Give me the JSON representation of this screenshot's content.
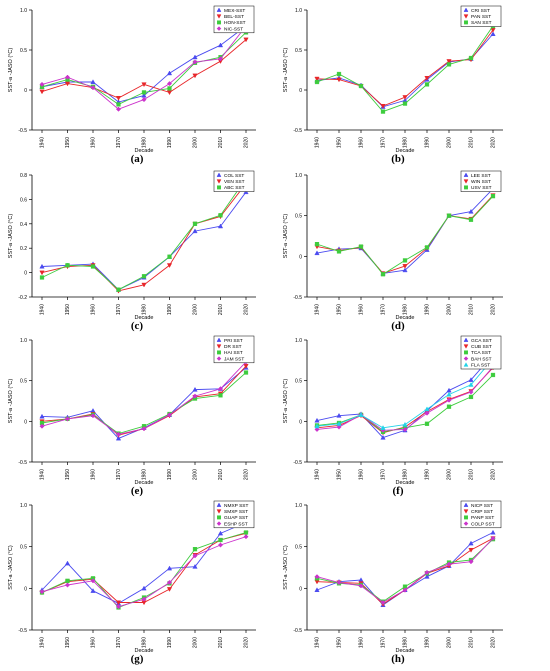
{
  "chart_data": [
    {
      "type": "line",
      "panel": "(a)",
      "xlabel": "Decade",
      "ylabel": "SST-a -JASO (°C)",
      "ylim": [
        -0.5,
        1.0
      ],
      "yticks": [
        "-0.5",
        "0",
        "0.5",
        "1.0"
      ],
      "categories": [
        "1940",
        "1950",
        "1960",
        "1970",
        "1980",
        "1990",
        "2000",
        "2010",
        "2020"
      ],
      "grid": false,
      "legend": "top-right",
      "series": [
        {
          "name": "MEX-SST",
          "color": "#4b4bf0",
          "marker": "triangle",
          "values": [
            0.04,
            0.1,
            0.1,
            -0.15,
            -0.07,
            0.21,
            0.41,
            0.56,
            0.8
          ]
        },
        {
          "name": "BEL-SST",
          "color": "#e8262a",
          "marker": "tri-down",
          "values": [
            -0.02,
            0.08,
            0.03,
            -0.1,
            0.07,
            -0.03,
            0.18,
            0.36,
            0.63
          ]
        },
        {
          "name": "HON-SST",
          "color": "#3dcc3d",
          "marker": "square",
          "values": [
            0.04,
            0.13,
            0.04,
            -0.18,
            -0.03,
            0.02,
            0.34,
            0.41,
            0.72
          ]
        },
        {
          "name": "NIC-SST",
          "color": "#cc33cc",
          "marker": "diamond",
          "values": [
            0.07,
            0.16,
            0.03,
            -0.24,
            -0.12,
            0.08,
            0.35,
            0.39,
            0.8
          ]
        }
      ]
    },
    {
      "type": "line",
      "panel": "(b)",
      "xlabel": "Decade",
      "ylabel": "SST-a -JASO (°C)",
      "ylim": [
        -0.5,
        1.0
      ],
      "yticks": [
        "-0.5",
        "0",
        "0.5",
        "1.0"
      ],
      "categories": [
        "1940",
        "1950",
        "1960",
        "1970",
        "1980",
        "1990",
        "2000",
        "2010",
        "2020"
      ],
      "grid": false,
      "legend": "top-right",
      "series": [
        {
          "name": "CRI SST",
          "color": "#4b4bf0",
          "marker": "triangle",
          "values": [
            0.12,
            0.15,
            0.06,
            -0.21,
            -0.13,
            0.13,
            0.35,
            0.39,
            0.7
          ]
        },
        {
          "name": "PAN SST",
          "color": "#e8262a",
          "marker": "tri-down",
          "values": [
            0.14,
            0.13,
            0.05,
            -0.2,
            -0.09,
            0.15,
            0.36,
            0.38,
            0.75
          ]
        },
        {
          "name": "SAN SST",
          "color": "#3dcc3d",
          "marker": "square",
          "values": [
            0.1,
            0.2,
            0.05,
            -0.27,
            -0.17,
            0.07,
            0.32,
            0.4,
            0.8
          ]
        }
      ]
    },
    {
      "type": "line",
      "panel": "(c)",
      "xlabel": "Decade",
      "ylabel": "SST-a -JASO (°C)",
      "ylim": [
        -0.2,
        0.8
      ],
      "yticks": [
        "-0.2",
        "0",
        "0.2",
        "0.4",
        "0.6",
        "0.8"
      ],
      "categories": [
        "1940",
        "1950",
        "1960",
        "1970",
        "1980",
        "1990",
        "2000",
        "2010",
        "2020"
      ],
      "grid": false,
      "legend": "top-right",
      "series": [
        {
          "name": "COL SST",
          "color": "#4b4bf0",
          "marker": "triangle",
          "values": [
            0.05,
            0.06,
            0.07,
            -0.14,
            -0.04,
            0.13,
            0.34,
            0.38,
            0.66
          ]
        },
        {
          "name": "VEN SST",
          "color": "#e8262a",
          "marker": "tri-down",
          "values": [
            0.0,
            0.05,
            0.06,
            -0.15,
            -0.1,
            0.06,
            0.4,
            0.46,
            0.73
          ]
        },
        {
          "name": "ABC SST",
          "color": "#3dcc3d",
          "marker": "square",
          "values": [
            -0.04,
            0.06,
            0.05,
            -0.14,
            -0.03,
            0.13,
            0.4,
            0.47,
            0.77
          ]
        }
      ]
    },
    {
      "type": "line",
      "panel": "(d)",
      "xlabel": "Decade",
      "ylabel": "SST-a -JASO (°C)",
      "ylim": [
        -0.5,
        1.0
      ],
      "yticks": [
        "-0.5",
        "0",
        "0.5",
        "1.0"
      ],
      "categories": [
        "1940",
        "1950",
        "1960",
        "1970",
        "1980",
        "1990",
        "2000",
        "2010",
        "2020"
      ],
      "grid": false,
      "legend": "top-right",
      "series": [
        {
          "name": "LEE SST",
          "color": "#4b4bf0",
          "marker": "triangle",
          "values": [
            0.04,
            0.09,
            0.1,
            -0.21,
            -0.17,
            0.08,
            0.5,
            0.55,
            0.83
          ]
        },
        {
          "name": "WIN SST",
          "color": "#e8262a",
          "marker": "tri-down",
          "values": [
            0.12,
            0.07,
            0.11,
            -0.21,
            -0.12,
            0.1,
            0.5,
            0.46,
            0.75
          ]
        },
        {
          "name": "USV SST",
          "color": "#3dcc3d",
          "marker": "square",
          "values": [
            0.15,
            0.06,
            0.12,
            -0.22,
            -0.05,
            0.11,
            0.5,
            0.45,
            0.74
          ]
        }
      ]
    },
    {
      "type": "line",
      "panel": "(e)",
      "xlabel": "Decade",
      "ylabel": "SST-a -JASO (°C)",
      "ylim": [
        -0.5,
        1.0
      ],
      "yticks": [
        "-0.5",
        "0",
        "0.5",
        "1.0"
      ],
      "categories": [
        "1940",
        "1950",
        "1960",
        "1970",
        "1980",
        "1990",
        "2000",
        "2010",
        "2020"
      ],
      "grid": false,
      "legend": "top-right",
      "series": [
        {
          "name": "PRI SST",
          "color": "#4b4bf0",
          "marker": "triangle",
          "values": [
            0.06,
            0.05,
            0.13,
            -0.21,
            -0.08,
            0.08,
            0.39,
            0.4,
            0.66
          ]
        },
        {
          "name": "DR SST",
          "color": "#e8262a",
          "marker": "tri-down",
          "values": [
            0.0,
            0.03,
            0.09,
            -0.17,
            -0.09,
            0.07,
            0.3,
            0.34,
            0.68
          ]
        },
        {
          "name": "HAI SST",
          "color": "#3dcc3d",
          "marker": "square",
          "values": [
            -0.02,
            0.03,
            0.08,
            -0.15,
            -0.06,
            0.09,
            0.28,
            0.32,
            0.6
          ]
        },
        {
          "name": "JAM SST",
          "color": "#cc33cc",
          "marker": "diamond",
          "values": [
            -0.06,
            0.03,
            0.07,
            -0.16,
            -0.09,
            0.08,
            0.31,
            0.4,
            0.73
          ]
        }
      ]
    },
    {
      "type": "line",
      "panel": "(f)",
      "xlabel": "Decade",
      "ylabel": "SST-a -JASO (°C)",
      "ylim": [
        -0.5,
        1.0
      ],
      "yticks": [
        "-0.5",
        "0",
        "0.5",
        "1.0"
      ],
      "categories": [
        "1940",
        "1950",
        "1960",
        "1970",
        "1980",
        "1990",
        "2000",
        "2010",
        "2020"
      ],
      "grid": false,
      "legend": "top-right",
      "series": [
        {
          "name": "GCA SST",
          "color": "#4b4bf0",
          "marker": "triangle",
          "values": [
            0.01,
            0.07,
            0.09,
            -0.2,
            -0.11,
            0.13,
            0.38,
            0.51,
            0.82
          ]
        },
        {
          "name": "CUB SST",
          "color": "#e8262a",
          "marker": "tri-down",
          "values": [
            -0.08,
            -0.05,
            0.07,
            -0.14,
            -0.07,
            0.12,
            0.27,
            0.37,
            0.66
          ]
        },
        {
          "name": "TCA SST",
          "color": "#3dcc3d",
          "marker": "square",
          "values": [
            -0.05,
            -0.02,
            0.08,
            -0.13,
            -0.08,
            -0.03,
            0.18,
            0.3,
            0.57
          ]
        },
        {
          "name": "BAH SST",
          "color": "#cc33cc",
          "marker": "diamond",
          "values": [
            -0.1,
            -0.07,
            0.08,
            -0.11,
            -0.1,
            0.1,
            0.26,
            0.36,
            0.67
          ]
        },
        {
          "name": "FLA SST",
          "color": "#22d3e8",
          "marker": "triangle",
          "values": [
            -0.06,
            -0.03,
            0.08,
            -0.08,
            -0.04,
            0.15,
            0.33,
            0.45,
            0.77
          ]
        }
      ]
    },
    {
      "type": "line",
      "panel": "(g)",
      "xlabel": "Decade",
      "ylabel": "SST-a -JASO (°C)",
      "ylim": [
        -0.5,
        1.0
      ],
      "yticks": [
        "-0.5",
        "0",
        "0.5",
        "1.0"
      ],
      "categories": [
        "1940",
        "1950",
        "1960",
        "1970",
        "1980",
        "1990",
        "2000",
        "2010",
        "2020"
      ],
      "grid": false,
      "legend": "top-right",
      "series": [
        {
          "name": "NMXP SST",
          "color": "#4b4bf0",
          "marker": "triangle",
          "values": [
            -0.02,
            0.3,
            -0.03,
            -0.18,
            0.0,
            0.24,
            0.26,
            0.66,
            0.79
          ]
        },
        {
          "name": "SMXP SST",
          "color": "#e8262a",
          "marker": "tri-down",
          "values": [
            -0.05,
            0.08,
            0.11,
            -0.17,
            -0.17,
            -0.01,
            0.4,
            0.58,
            0.66
          ]
        },
        {
          "name": "GUAP SST",
          "color": "#3dcc3d",
          "marker": "square",
          "values": [
            -0.05,
            0.09,
            0.12,
            -0.23,
            -0.11,
            0.06,
            0.47,
            0.58,
            0.67
          ]
        },
        {
          "name": "ESHP SST",
          "color": "#cc33cc",
          "marker": "diamond",
          "values": [
            -0.04,
            0.04,
            0.09,
            -0.22,
            -0.13,
            0.07,
            0.39,
            0.52,
            0.62
          ]
        }
      ]
    },
    {
      "type": "line",
      "panel": "(h)",
      "xlabel": "Decade",
      "ylabel": "SST-a -JASO (°C)",
      "ylim": [
        -0.5,
        1.0
      ],
      "yticks": [
        "-0.5",
        "0",
        "0.5",
        "1.0"
      ],
      "categories": [
        "1940",
        "1950",
        "1960",
        "1970",
        "1980",
        "1990",
        "2000",
        "2010",
        "2020"
      ],
      "grid": false,
      "legend": "top-right",
      "series": [
        {
          "name": "NICP SST",
          "color": "#4b4bf0",
          "marker": "triangle",
          "values": [
            -0.02,
            0.08,
            0.1,
            -0.2,
            -0.02,
            0.14,
            0.27,
            0.54,
            0.67
          ]
        },
        {
          "name": "CRIP SST",
          "color": "#e8262a",
          "marker": "tri-down",
          "values": [
            0.08,
            0.07,
            0.06,
            -0.19,
            -0.02,
            0.18,
            0.27,
            0.46,
            0.6
          ]
        },
        {
          "name": "PANP SST",
          "color": "#3dcc3d",
          "marker": "square",
          "values": [
            0.12,
            0.06,
            0.04,
            -0.16,
            0.02,
            0.18,
            0.31,
            0.34,
            0.59
          ]
        },
        {
          "name": "COLP SST",
          "color": "#cc33cc",
          "marker": "diamond",
          "values": [
            0.14,
            0.07,
            0.03,
            -0.17,
            -0.02,
            0.19,
            0.29,
            0.32,
            0.6
          ]
        }
      ]
    }
  ]
}
